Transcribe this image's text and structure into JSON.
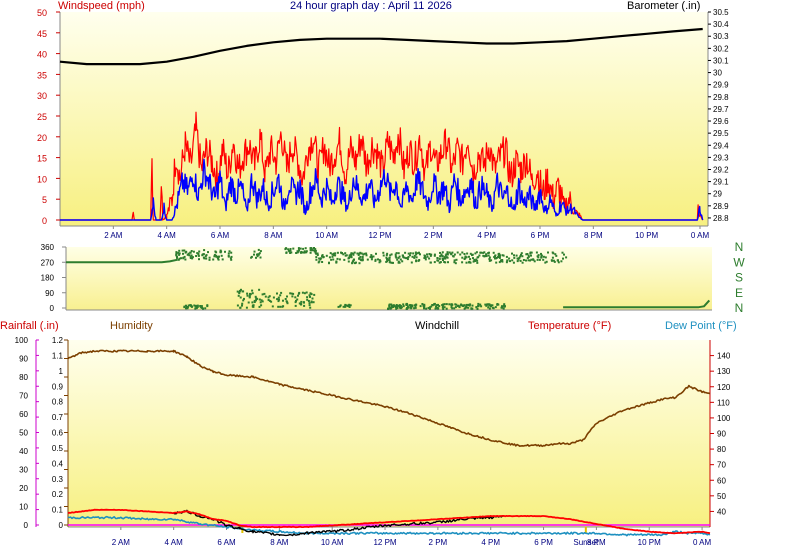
{
  "chart_data": [
    {
      "type": "line",
      "panel": "wind-barometer",
      "title": "24 hour graph day : April 11 2026",
      "ylabel_left": "Windspeed (mph)",
      "ylabel_right": "Barometer (.in)",
      "x_ticks": [
        "2 AM",
        "4 AM",
        "6 AM",
        "8 AM",
        "10 AM",
        "12 PM",
        "2 PM",
        "4 PM",
        "6 PM",
        "8 PM",
        "10 PM",
        "0 AM"
      ],
      "x_tick_hours": [
        2,
        4,
        6,
        8,
        10,
        12,
        14,
        16,
        18,
        20,
        22,
        24
      ],
      "xlim": [
        0,
        24.3
      ],
      "ylim_left": [
        0,
        50
      ],
      "y_ticks_left": [
        "0",
        "5",
        "10",
        "15",
        "20",
        "25",
        "30",
        "35",
        "40",
        "45",
        "50"
      ],
      "ylim_right": [
        28.75,
        30.5
      ],
      "y_ticks_right": [
        "28.8",
        "28.9",
        "29",
        "29.1",
        "29.2",
        "29.3",
        "29.4",
        "29.5",
        "29.6",
        "29.7",
        "29.8",
        "29.9",
        "30",
        "30.1",
        "30.2",
        "30.3",
        "30.4",
        "30.5"
      ],
      "series": [
        {
          "name": "Barometer",
          "color": "#000000",
          "axis": "right",
          "x": [
            0,
            1,
            2,
            3,
            4,
            5,
            6,
            7,
            8,
            9,
            10,
            11,
            12,
            13,
            14,
            15,
            16,
            17,
            18,
            19,
            20,
            21,
            22,
            23,
            24.1
          ],
          "values": [
            30.09,
            30.07,
            30.07,
            30.07,
            30.09,
            30.13,
            30.18,
            30.22,
            30.25,
            30.27,
            30.28,
            30.28,
            30.28,
            30.27,
            30.26,
            30.25,
            30.24,
            30.24,
            30.25,
            30.26,
            30.28,
            30.3,
            30.32,
            30.34,
            30.36
          ]
        },
        {
          "name": "Wind gust",
          "color": "#ff0000",
          "axis": "left",
          "x": [
            0,
            2.7,
            2.75,
            2.8,
            3.4,
            3.45,
            3.5,
            3.75,
            3.8,
            3.85,
            4.0,
            4.2,
            4.35,
            4.5,
            4.7,
            4.9,
            5.1,
            5.3,
            5.5,
            5.7,
            5.9,
            6.1,
            6.3,
            6.5,
            6.7,
            6.9,
            7.1,
            7.3,
            7.5,
            7.7,
            7.9,
            8.1,
            8.3,
            8.5,
            8.7,
            8.9,
            9.1,
            9.3,
            9.5,
            9.7,
            9.9,
            10.1,
            10.3,
            10.5,
            10.7,
            10.9,
            11.1,
            11.3,
            11.5,
            11.7,
            11.9,
            12.1,
            12.3,
            12.5,
            12.7,
            12.9,
            13.1,
            13.3,
            13.5,
            13.7,
            13.9,
            14.1,
            14.3,
            14.5,
            14.7,
            14.9,
            15.1,
            15.3,
            15.5,
            15.7,
            15.9,
            16.1,
            16.3,
            16.5,
            16.7,
            16.9,
            17.1,
            17.3,
            17.5,
            17.7,
            17.9,
            18.1,
            18.3,
            18.5,
            18.7,
            18.9,
            19.1,
            19.3,
            19.5,
            19.6,
            23.9,
            23.95,
            24.0,
            24.1
          ],
          "values": [
            0,
            0,
            2,
            0,
            0,
            12,
            0,
            0,
            12,
            0,
            1,
            5,
            16,
            10,
            18,
            13,
            22,
            12,
            17,
            14,
            10,
            17,
            11,
            19,
            12,
            16,
            18,
            13,
            20,
            11,
            17,
            14,
            21,
            12,
            18,
            15,
            10,
            17,
            20,
            12,
            18,
            13,
            16,
            19,
            11,
            17,
            14,
            20,
            13,
            18,
            16,
            12,
            19,
            15,
            21,
            12,
            17,
            14,
            20,
            11,
            18,
            13,
            16,
            19,
            12,
            17,
            14,
            20,
            11,
            16,
            13,
            18,
            12,
            15,
            17,
            10,
            14,
            12,
            15,
            9,
            12,
            6,
            10,
            5,
            8,
            3,
            5,
            2,
            1,
            0,
            0,
            5,
            1,
            0
          ]
        },
        {
          "name": "Wind speed",
          "color": "#0000ff",
          "axis": "left",
          "x": [
            0,
            3.4,
            3.5,
            3.6,
            3.8,
            3.9,
            4.0,
            4.2,
            4.4,
            4.6,
            4.8,
            5.0,
            5.2,
            5.4,
            5.6,
            5.8,
            6.0,
            6.2,
            6.4,
            6.6,
            6.8,
            7.0,
            7.2,
            7.4,
            7.6,
            7.8,
            8.0,
            8.2,
            8.4,
            8.6,
            8.8,
            9.0,
            9.2,
            9.4,
            9.6,
            9.8,
            10.0,
            10.2,
            10.4,
            10.6,
            10.8,
            11.0,
            11.2,
            11.4,
            11.6,
            11.8,
            12.0,
            12.2,
            12.4,
            12.6,
            12.8,
            13.0,
            13.2,
            13.4,
            13.6,
            13.8,
            14.0,
            14.2,
            14.4,
            14.6,
            14.8,
            15.0,
            15.2,
            15.4,
            15.6,
            15.8,
            16.0,
            16.2,
            16.4,
            16.6,
            16.8,
            17.0,
            17.2,
            17.4,
            17.6,
            17.8,
            18.0,
            18.2,
            18.4,
            18.6,
            18.8,
            19.0,
            19.2,
            19.4,
            19.6,
            23.9,
            24.0,
            24.1
          ],
          "values": [
            0,
            0,
            4,
            0,
            0,
            3,
            0,
            0,
            4,
            9,
            7,
            11,
            6,
            12,
            9,
            5,
            10,
            3,
            9,
            6,
            8,
            2,
            10,
            5,
            8,
            4,
            7,
            10,
            3,
            9,
            6,
            8,
            2,
            7,
            10,
            5,
            8,
            4,
            9,
            6,
            3,
            10,
            7,
            5,
            9,
            4,
            8,
            11,
            6,
            9,
            3,
            8,
            5,
            10,
            7,
            4,
            9,
            6,
            8,
            3,
            10,
            5,
            7,
            9,
            4,
            8,
            6,
            3,
            9,
            5,
            7,
            2,
            8,
            4,
            6,
            3,
            7,
            2,
            5,
            1,
            4,
            2,
            3,
            1,
            0,
            0,
            3,
            0
          ]
        }
      ]
    },
    {
      "type": "scatter",
      "panel": "wind-direction",
      "ylim": [
        0,
        360
      ],
      "y_ticks": [
        "0",
        "90",
        "180",
        "270",
        "360"
      ],
      "direction_labels": [
        "N",
        "W",
        "S",
        "E",
        "N"
      ],
      "series": [
        {
          "name": "Wind direction",
          "color": "#2e7d2e",
          "clusters": [
            {
              "x_from": 4.1,
              "x_to": 6.2,
              "y_from": 290,
              "y_to": 350
            },
            {
              "x_from": 6.9,
              "x_to": 7.3,
              "y_from": 290,
              "y_to": 350
            },
            {
              "x_from": 8.2,
              "x_to": 9.4,
              "y_from": 330,
              "y_to": 360
            },
            {
              "x_from": 9.3,
              "x_to": 18.8,
              "y_from": 270,
              "y_to": 335
            },
            {
              "x_from": 4.4,
              "x_to": 5.3,
              "y_from": 0,
              "y_to": 25
            },
            {
              "x_from": 6.4,
              "x_to": 9.3,
              "y_from": 5,
              "y_to": 115
            },
            {
              "x_from": 10.2,
              "x_to": 10.7,
              "y_from": 10,
              "y_to": 25
            },
            {
              "x_from": 12.0,
              "x_to": 16.5,
              "y_from": 0,
              "y_to": 30
            }
          ]
        },
        {
          "name": "Wind direction (line)",
          "color": "#2e7d2e",
          "x": [
            0,
            3.6,
            3.9,
            4.2
          ],
          "values": [
            270,
            270,
            275,
            285
          ]
        },
        {
          "name": "Wind direction (evening)",
          "color": "#2e7d2e",
          "x": [
            18.7,
            23.6,
            23.8,
            24.0,
            24.2
          ],
          "values": [
            5,
            5,
            5,
            10,
            45
          ]
        }
      ]
    },
    {
      "type": "line",
      "panel": "temperature-humidity",
      "labels": {
        "rainfall": "Rainfall (.in)",
        "humidity": "Humidity",
        "windchill": "Windchill",
        "temperature": "Temperature (°F)",
        "dewpoint": "Dew Point (°F)",
        "sunset": "Sunset"
      },
      "x_ticks": [
        "2 AM",
        "4 AM",
        "6 AM",
        "8 AM",
        "10 AM",
        "12 PM",
        "2 PM",
        "4 PM",
        "6 PM",
        "8 PM",
        "10 PM",
        "0 AM"
      ],
      "x_tick_hours": [
        2,
        4,
        6,
        8,
        10,
        12,
        14,
        16,
        18,
        20,
        22,
        24
      ],
      "sunset_hour": 19.6,
      "axis_humidity": {
        "ylim": [
          0,
          100
        ],
        "ticks": [
          "0",
          "10",
          "20",
          "30",
          "40",
          "50",
          "60",
          "70",
          "80",
          "90",
          "100"
        ]
      },
      "axis_rainfall": {
        "ylim": [
          0,
          1.2
        ],
        "ticks": [
          "0",
          "0.1",
          "0.2",
          "0.3",
          "0.4",
          "0.5",
          "0.6",
          "0.7",
          "0.8",
          "0.9",
          "1",
          "1.1",
          "1.2"
        ]
      },
      "axis_temperature": {
        "ylim": [
          30,
          150
        ],
        "ticks": [
          "40",
          "50",
          "60",
          "70",
          "80",
          "90",
          "100",
          "110",
          "120",
          "130",
          "140"
        ]
      },
      "series": [
        {
          "name": "Humidity",
          "color": "#7b3f00",
          "axis": "humidity",
          "x": [
            0,
            0.5,
            1,
            2,
            3,
            4,
            4.5,
            5,
            5.5,
            6,
            7,
            8,
            9,
            10,
            11,
            12,
            13,
            14,
            15,
            16,
            17,
            18,
            18.5,
            19,
            19.5,
            20,
            21,
            22,
            22.5,
            23,
            23.5,
            24,
            24.3
          ],
          "values": [
            90,
            93,
            94,
            94,
            94,
            94,
            91,
            86,
            83,
            81,
            80,
            76,
            73,
            70,
            67,
            64,
            60,
            55,
            50,
            46,
            43,
            43,
            44,
            44,
            46,
            55,
            62,
            66,
            68,
            69,
            75,
            72,
            71
          ]
        },
        {
          "name": "Temperature",
          "color": "#ff0000",
          "axis": "temperature",
          "x": [
            0,
            1,
            2,
            3,
            4,
            4.5,
            5,
            5.5,
            6,
            6.5,
            7,
            8,
            9,
            10,
            11,
            12,
            13,
            14,
            15,
            16,
            17,
            18,
            19,
            20,
            21,
            22,
            23,
            24,
            24.3
          ],
          "values": [
            39,
            41,
            41,
            40,
            39,
            40,
            38,
            35,
            34,
            31,
            30,
            30,
            30,
            31,
            32,
            33,
            34,
            35,
            36,
            37,
            37,
            37,
            35,
            32,
            29,
            27,
            26,
            27,
            26
          ]
        },
        {
          "name": "Windchill",
          "color": "#000000",
          "axis": "temperature",
          "x": [
            4,
            4.5,
            5,
            5.5,
            6,
            6.5,
            7,
            7.5,
            8,
            8.5,
            9,
            9.5,
            10,
            11,
            12,
            13,
            14,
            15,
            16,
            16.5
          ],
          "values": [
            39,
            40,
            37,
            35,
            31,
            29,
            27,
            26,
            25,
            25,
            26,
            27,
            27,
            29,
            31,
            32,
            33,
            35,
            36,
            37
          ]
        },
        {
          "name": "Dew Point",
          "color": "#1e90c0",
          "axis": "temperature",
          "x": [
            0,
            1,
            2,
            3,
            4,
            5,
            6,
            7,
            8,
            9,
            10,
            11,
            12,
            13,
            14,
            15,
            16,
            17,
            18,
            19,
            20,
            21,
            22,
            22.5,
            23,
            23.5,
            24,
            24.3
          ],
          "values": [
            36,
            36,
            36,
            35,
            35,
            32,
            30,
            28,
            27,
            26,
            26,
            26,
            26,
            26,
            26,
            26,
            26,
            26,
            26,
            26,
            26,
            25,
            25,
            25,
            27,
            26,
            26,
            25
          ]
        },
        {
          "name": "Rainfall",
          "color": "#ff00ff",
          "axis": "rainfall",
          "x": [
            0,
            24.3
          ],
          "values": [
            0,
            0
          ]
        }
      ]
    }
  ]
}
